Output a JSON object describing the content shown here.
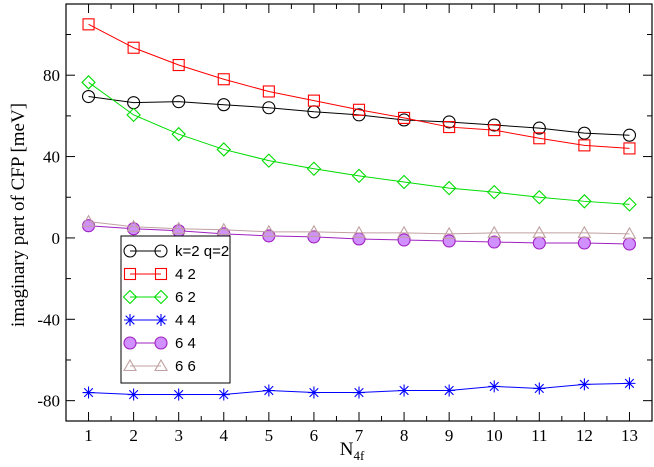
{
  "chart_data": {
    "type": "line",
    "xlabel": "N",
    "xlabel_sub": "4f",
    "ylabel": "imaginary part of CFP  [meV]",
    "xlim": [
      0.5,
      13.5
    ],
    "ylim": [
      -90,
      115
    ],
    "xticks": [
      1,
      2,
      3,
      4,
      5,
      6,
      7,
      8,
      9,
      10,
      11,
      12,
      13
    ],
    "yticks": [
      -80,
      -40,
      0,
      40,
      80
    ],
    "x": [
      1,
      2,
      3,
      4,
      5,
      6,
      7,
      8,
      9,
      10,
      11,
      12,
      13
    ],
    "grid": false,
    "legend_position": "bottom-left",
    "series": [
      {
        "name": "k=2 q=2",
        "color": "#000000",
        "marker": "circle",
        "values": [
          69.5,
          66.5,
          67,
          65.5,
          64,
          62,
          60.5,
          58,
          57,
          55.5,
          54,
          51.5,
          50.5
        ]
      },
      {
        "name": "4 2",
        "color": "#ff0000",
        "marker": "square",
        "values": [
          105,
          93.5,
          85,
          78,
          72,
          67.5,
          63,
          59,
          54.5,
          53,
          49,
          45.5,
          44
        ]
      },
      {
        "name": "6 2",
        "color": "#00dd00",
        "marker": "diamond",
        "values": [
          76.5,
          60.5,
          51,
          43.5,
          38,
          34,
          30.5,
          27.5,
          24.5,
          22.5,
          20,
          18,
          16.5
        ]
      },
      {
        "name": "4 4",
        "color": "#0000ff",
        "marker": "star",
        "values": [
          -76,
          -77,
          -77,
          -77,
          -75,
          -76,
          -76,
          -75,
          -75,
          -73,
          -74,
          -72,
          -71.5
        ]
      },
      {
        "name": "6 4",
        "color": "#a020c0",
        "fill": "#d090ff",
        "marker": "circle-filled",
        "values": [
          6,
          4.5,
          3.5,
          2,
          1,
          0.5,
          -0.5,
          -1,
          -1.5,
          -2,
          -2.5,
          -2.5,
          -3
        ]
      },
      {
        "name": "6 6",
        "color": "#c0a0a0",
        "marker": "triangle",
        "values": [
          8,
          5.5,
          4.5,
          4,
          3,
          3,
          2.5,
          2.5,
          2,
          2.5,
          2.5,
          2.5,
          2
        ]
      }
    ]
  }
}
